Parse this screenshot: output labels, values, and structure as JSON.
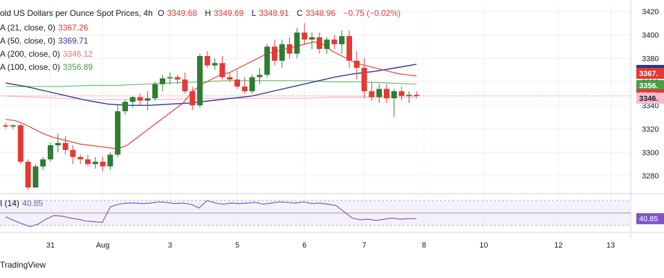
{
  "header": {
    "title": "old US Dollars per Ounce Spot Prices, 4h",
    "open_label": "O",
    "open": "3349.68",
    "high_label": "H",
    "high": "3349.69",
    "low_label": "L",
    "low": "3348.91",
    "close_label": "C",
    "close": "3348.96",
    "change": "−0.75 (−0.02%)"
  },
  "legend": [
    {
      "label": "A (21, close, 0)",
      "value": "3367.26",
      "color": "#e53935"
    },
    {
      "label": "A (50, close, 0)",
      "value": "3369.71",
      "color": "#283593"
    },
    {
      "label": "A (200, close, 0)",
      "value": "3346.12",
      "color": "#f48fb1"
    },
    {
      "label": "A (100, close, 0)",
      "value": "3356.89",
      "color": "#43a047"
    }
  ],
  "rsi_legend": {
    "label": "I (14)",
    "value": "40.85"
  },
  "footer": {
    "brand": "TradingView"
  },
  "colors": {
    "up": "#2e7d32",
    "down": "#e53935",
    "rsi": "#7e57c2",
    "grid": "#eef0f3"
  },
  "chart_data": {
    "type": "candlestick",
    "ylim": [
      3266,
      3425
    ],
    "yticks": [
      3280,
      3300,
      3320,
      3340,
      3360,
      3380,
      3400,
      3420
    ],
    "xticks": [
      "31",
      "Aug",
      "3",
      "5",
      "6",
      "7",
      "8",
      "10",
      "12",
      "13"
    ],
    "xtick_index": [
      6,
      13,
      22,
      31,
      40,
      48,
      56,
      64,
      74,
      81
    ],
    "last_price_label": "3348.",
    "price_tags": [
      {
        "value": 3369.71,
        "text": "3369.",
        "color": "#283593"
      },
      {
        "value": 3367.26,
        "text": "3367.",
        "color": "#e53935"
      },
      {
        "value": 3356.89,
        "text": "3356.",
        "color": "#43a047"
      },
      {
        "value": 3348.96,
        "text": "3348.",
        "color": "#e53935"
      },
      {
        "value": 3346.12,
        "text": "3346.",
        "color": "#f8bbd0"
      }
    ],
    "candles": [
      [
        3323,
        3325,
        3320,
        3322
      ],
      [
        3322,
        3324,
        3320,
        3323
      ],
      [
        3323,
        3324,
        3290,
        3292
      ],
      [
        3292,
        3294,
        3268,
        3270
      ],
      [
        3270,
        3290,
        3270,
        3288
      ],
      [
        3288,
        3296,
        3285,
        3294
      ],
      [
        3294,
        3308,
        3292,
        3306
      ],
      [
        3306,
        3316,
        3300,
        3308
      ],
      [
        3308,
        3314,
        3298,
        3302
      ],
      [
        3302,
        3306,
        3290,
        3296
      ],
      [
        3296,
        3298,
        3290,
        3294
      ],
      [
        3294,
        3298,
        3288,
        3290
      ],
      [
        3290,
        3296,
        3286,
        3292
      ],
      [
        3292,
        3296,
        3284,
        3288
      ],
      [
        3288,
        3300,
        3285,
        3298
      ],
      [
        3298,
        3340,
        3296,
        3335
      ],
      [
        3335,
        3345,
        3332,
        3343
      ],
      [
        3343,
        3348,
        3338,
        3347
      ],
      [
        3347,
        3350,
        3340,
        3344
      ],
      [
        3344,
        3352,
        3336,
        3346
      ],
      [
        3346,
        3360,
        3344,
        3358
      ],
      [
        3358,
        3366,
        3352,
        3363
      ],
      [
        3363,
        3368,
        3358,
        3364
      ],
      [
        3364,
        3366,
        3358,
        3362
      ],
      [
        3362,
        3368,
        3350,
        3352
      ],
      [
        3352,
        3356,
        3336,
        3340
      ],
      [
        3340,
        3384,
        3338,
        3382
      ],
      [
        3382,
        3386,
        3372,
        3374
      ],
      [
        3374,
        3380,
        3370,
        3376
      ],
      [
        3376,
        3382,
        3362,
        3364
      ],
      [
        3364,
        3368,
        3360,
        3362
      ],
      [
        3362,
        3370,
        3354,
        3356
      ],
      [
        3356,
        3364,
        3350,
        3352
      ],
      [
        3352,
        3366,
        3350,
        3364
      ],
      [
        3364,
        3372,
        3358,
        3366
      ],
      [
        3366,
        3392,
        3364,
        3390
      ],
      [
        3390,
        3396,
        3374,
        3378
      ],
      [
        3378,
        3396,
        3372,
        3392
      ],
      [
        3392,
        3398,
        3380,
        3384
      ],
      [
        3384,
        3406,
        3380,
        3402
      ],
      [
        3402,
        3410,
        3392,
        3396
      ],
      [
        3396,
        3402,
        3388,
        3398
      ],
      [
        3398,
        3402,
        3384,
        3388
      ],
      [
        3388,
        3398,
        3384,
        3396
      ],
      [
        3396,
        3400,
        3388,
        3392
      ],
      [
        3392,
        3404,
        3384,
        3399
      ],
      [
        3399,
        3404,
        3372,
        3378
      ],
      [
        3378,
        3386,
        3362,
        3372
      ],
      [
        3372,
        3380,
        3346,
        3352
      ],
      [
        3352,
        3360,
        3344,
        3347
      ],
      [
        3347,
        3358,
        3342,
        3354
      ],
      [
        3354,
        3358,
        3342,
        3346
      ],
      [
        3346,
        3354,
        3330,
        3352
      ],
      [
        3352,
        3356,
        3344,
        3348
      ],
      [
        3348,
        3352,
        3342,
        3349
      ],
      [
        3349,
        3352,
        3346,
        3348
      ]
    ],
    "ma21": [
      3328,
      3327,
      3324,
      3320,
      3316,
      3313,
      3311,
      3309,
      3307,
      3306,
      3305,
      3304,
      3303,
      3306,
      3312,
      3318,
      3324,
      3330,
      3336,
      3342,
      3352,
      3358,
      3362,
      3366,
      3368,
      3372,
      3376,
      3380,
      3384,
      3386,
      3388,
      3390,
      3392,
      3394,
      3392,
      3386,
      3382,
      3378,
      3375,
      3373,
      3371,
      3369,
      3367,
      3366,
      3365
    ],
    "ma50": [
      3359,
      3356,
      3352,
      3348,
      3344,
      3341,
      3340,
      3340,
      3341,
      3342,
      3344,
      3346,
      3348,
      3352,
      3356,
      3360,
      3364,
      3367,
      3369,
      3372,
      3375
    ],
    "ma100": [
      3356,
      3356,
      3356,
      3357,
      3357,
      3358,
      3359,
      3360,
      3361,
      3361,
      3361,
      3361,
      3360,
      3360,
      3359,
      3358
    ],
    "ma200": [
      3348,
      3347,
      3346,
      3345,
      3345,
      3345,
      3345,
      3346,
      3346,
      3346,
      3346,
      3346,
      3347,
      3347,
      3347,
      3347
    ],
    "rsi": [
      44,
      38,
      33,
      28,
      32,
      40,
      46,
      45,
      42,
      40,
      37,
      36,
      35,
      60,
      64,
      66,
      66,
      65,
      66,
      68,
      67,
      65,
      66,
      64,
      58,
      70,
      66,
      64,
      66,
      65,
      66,
      67,
      64,
      66,
      68,
      67,
      66,
      68,
      65,
      66,
      64,
      62,
      52,
      42,
      39,
      40,
      38,
      40,
      42,
      40,
      41,
      40.85
    ],
    "rsi_ylim": [
      20,
      80
    ],
    "rsi_levels": [
      70,
      50,
      30
    ]
  }
}
